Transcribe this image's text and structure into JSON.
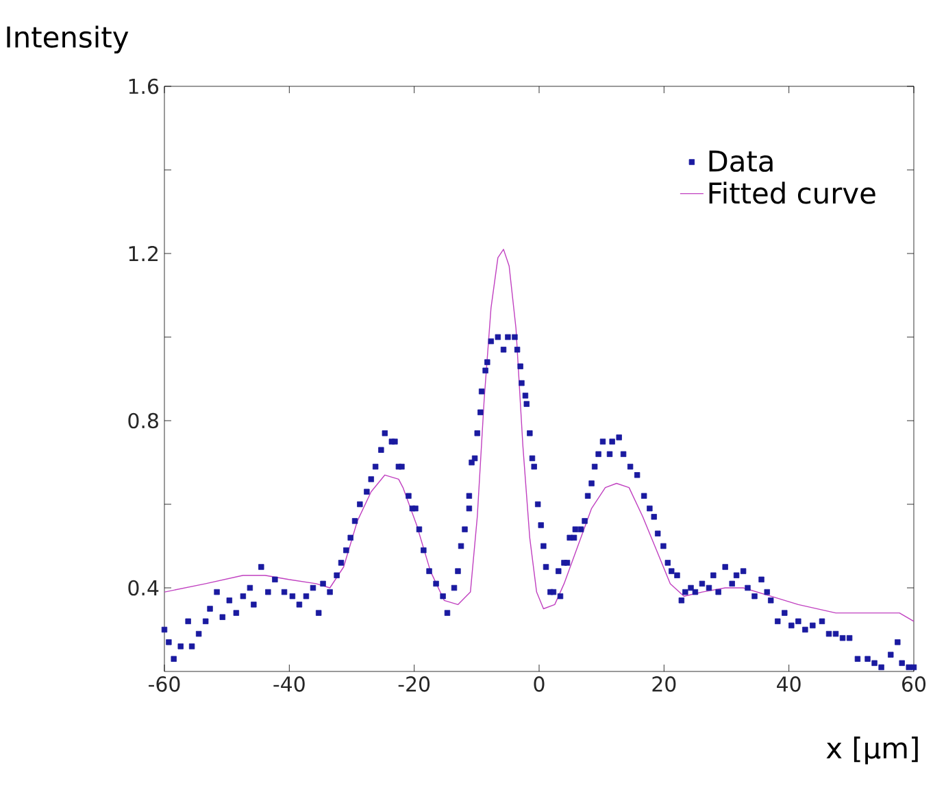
{
  "chart_data": {
    "type": "scatter",
    "xlabel": "x [µm]",
    "ylabel": "Intensity",
    "xlim": [
      -60,
      60
    ],
    "ylim": [
      0.2,
      1.6
    ],
    "xticks": [
      -60,
      -40,
      -20,
      0,
      20,
      40,
      60
    ],
    "yticks": [
      0.4,
      {
        "value": 0.6,
        "label": null
      },
      0.8,
      {
        "value": 1.0,
        "label": null
      },
      1.2,
      {
        "value": 1.4,
        "label": null
      },
      1.6
    ],
    "legend": "top right",
    "series": [
      {
        "name": "Data",
        "marker": "square",
        "color": "#1a1aa0",
        "x": [
          -60,
          -59.3,
          -58.5,
          -57.4,
          -56.2,
          -55.6,
          -54.5,
          -53.4,
          -52.7,
          -51.6,
          -50.7,
          -49.6,
          -48.5,
          -47.4,
          -46.3,
          -45.7,
          -44.5,
          -43.4,
          -42.3,
          -40.8,
          -39.5,
          -38.4,
          -37.3,
          -36.2,
          -35.3,
          -34.6,
          -33.5,
          -32.4,
          -31.7,
          -30.9,
          -30.2,
          -29.5,
          -28.7,
          -27.6,
          -26.9,
          -26.2,
          -25.3,
          -24.7,
          -23.6,
          -23.1,
          -22.5,
          -22.0,
          -20.9,
          -20.3,
          -19.8,
          -19.2,
          -18.5,
          -17.6,
          -16.5,
          -15.4,
          -14.7,
          -13.6,
          -13.0,
          -12.5,
          -11.9,
          -11.2,
          -11.2,
          -10.8,
          -10.3,
          -9.9,
          -9.4,
          -9.2,
          -8.6,
          -8.3,
          -7.7,
          -6.6,
          -5.7,
          -5.0,
          -3.9,
          -3.5,
          -3.0,
          -2.8,
          -2.2,
          -2.0,
          -1.5,
          -1.1,
          -0.8,
          -0.2,
          0.3,
          0.7,
          1.1,
          1.8,
          2.3,
          3.1,
          3.4,
          4.0,
          4.5,
          4.9,
          5.6,
          5.8,
          6.7,
          7.3,
          7.8,
          8.4,
          8.9,
          9.5,
          10.2,
          11.3,
          11.7,
          12.8,
          13.5,
          14.6,
          15.7,
          16.8,
          17.7,
          18.4,
          19.0,
          19.9,
          20.6,
          21.2,
          22.1,
          22.8,
          23.4,
          24.3,
          25.0,
          26.1,
          27.2,
          27.9,
          28.7,
          29.8,
          30.9,
          31.6,
          32.7,
          33.4,
          34.5,
          35.6,
          36.5,
          37.1,
          38.2,
          39.3,
          40.4,
          41.5,
          42.6,
          43.8,
          45.3,
          46.4,
          47.5,
          48.6,
          49.7,
          51.0,
          52.6,
          53.7,
          54.8,
          56.3,
          57.4,
          58.1,
          59.2,
          60
        ],
        "values": [
          0.3,
          0.27,
          0.23,
          0.26,
          0.32,
          0.26,
          0.29,
          0.32,
          0.35,
          0.39,
          0.33,
          0.37,
          0.34,
          0.38,
          0.4,
          0.36,
          0.45,
          0.39,
          0.42,
          0.39,
          0.38,
          0.36,
          0.38,
          0.4,
          0.34,
          0.41,
          0.39,
          0.43,
          0.46,
          0.49,
          0.52,
          0.56,
          0.6,
          0.63,
          0.66,
          0.69,
          0.73,
          0.77,
          0.75,
          0.75,
          0.69,
          0.69,
          0.62,
          0.59,
          0.59,
          0.54,
          0.49,
          0.44,
          0.41,
          0.38,
          0.34,
          0.4,
          0.44,
          0.5,
          0.54,
          0.59,
          0.62,
          0.7,
          0.71,
          0.77,
          0.82,
          0.87,
          0.92,
          0.94,
          0.99,
          1.0,
          0.97,
          1.0,
          1.0,
          0.97,
          0.93,
          0.89,
          0.86,
          0.84,
          0.77,
          0.71,
          0.69,
          0.6,
          0.55,
          0.5,
          0.45,
          0.39,
          0.39,
          0.44,
          0.38,
          0.46,
          0.46,
          0.52,
          0.52,
          0.54,
          0.54,
          0.56,
          0.62,
          0.65,
          0.69,
          0.72,
          0.75,
          0.72,
          0.75,
          0.76,
          0.72,
          0.69,
          0.67,
          0.62,
          0.59,
          0.57,
          0.53,
          0.5,
          0.46,
          0.44,
          0.43,
          0.37,
          0.39,
          0.4,
          0.39,
          0.41,
          0.4,
          0.43,
          0.39,
          0.45,
          0.41,
          0.43,
          0.44,
          0.4,
          0.38,
          0.42,
          0.39,
          0.37,
          0.32,
          0.34,
          0.31,
          0.32,
          0.3,
          0.31,
          0.32,
          0.29,
          0.29,
          0.28,
          0.28,
          0.23,
          0.23,
          0.22,
          0.21,
          0.24,
          0.27,
          0.22,
          0.21,
          0.21
        ]
      },
      {
        "name": "Fitted curve",
        "type": "line",
        "color": "#c040c0",
        "x": [
          -60,
          -53.4,
          -47.4,
          -43.9,
          -40.1,
          -35.7,
          -33.5,
          -31.3,
          -29.1,
          -26.9,
          -24.7,
          -22.5,
          -21.8,
          -19.6,
          -17.4,
          -15.2,
          -13.0,
          -11.0,
          -9.9,
          -8.8,
          -7.7,
          -6.6,
          -5.7,
          -4.8,
          -3.7,
          -2.6,
          -1.5,
          -0.4,
          0.7,
          2.5,
          4.0,
          6.2,
          8.4,
          10.6,
          12.4,
          14.4,
          16.6,
          18.8,
          21.0,
          23.2,
          26.1,
          29.8,
          32.7,
          37.1,
          41.5,
          47.5,
          53.2,
          57.7,
          60
        ],
        "values": [
          0.39,
          0.41,
          0.43,
          0.43,
          0.42,
          0.41,
          0.4,
          0.45,
          0.56,
          0.63,
          0.67,
          0.66,
          0.64,
          0.55,
          0.44,
          0.37,
          0.36,
          0.39,
          0.57,
          0.85,
          1.07,
          1.19,
          1.21,
          1.17,
          1.02,
          0.74,
          0.52,
          0.39,
          0.35,
          0.36,
          0.41,
          0.5,
          0.59,
          0.64,
          0.65,
          0.64,
          0.57,
          0.49,
          0.41,
          0.38,
          0.39,
          0.4,
          0.4,
          0.38,
          0.36,
          0.34,
          0.34,
          0.34,
          0.32
        ]
      }
    ]
  }
}
